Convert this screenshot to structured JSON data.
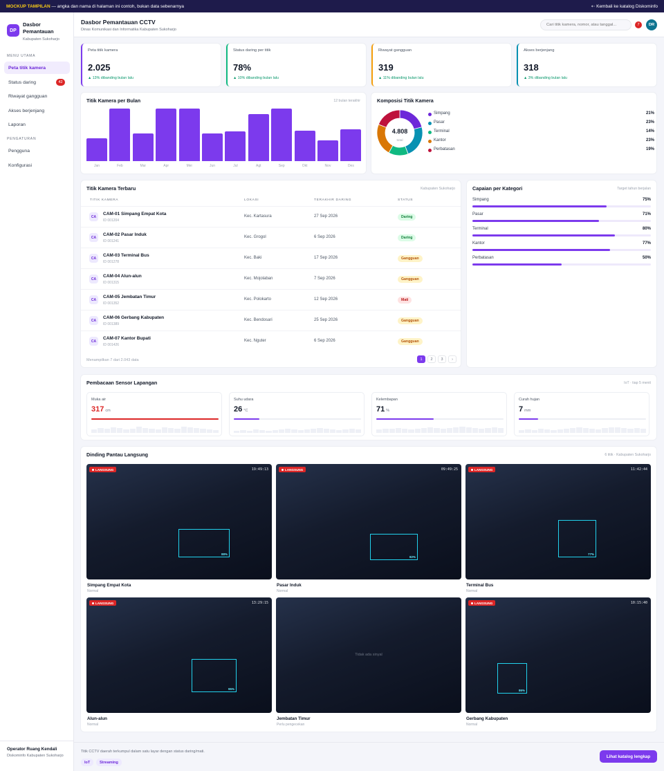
{
  "banner": {
    "tag": "MOCKUP TAMPILAN",
    "text": " — angka dan nama di halaman ini contoh, bukan data sebenarnya",
    "back": "⇠ Kembali ke katalog Diskominfo"
  },
  "brand": {
    "logo": "DP",
    "title": "Dasbor Pemantauan",
    "subtitle": "Kabupaten Sukoharjo"
  },
  "sidebar": {
    "main_label": "MENU UTAMA",
    "items": [
      {
        "label": "Peta titik kamera",
        "active": true
      },
      {
        "label": "Status daring",
        "count": "42"
      },
      {
        "label": "Riwayat gangguan"
      },
      {
        "label": "Akses berjenjang"
      },
      {
        "label": "Laporan"
      }
    ],
    "settings_label": "PENGATURAN",
    "settings": [
      {
        "label": "Pengguna"
      },
      {
        "label": "Konfigurasi"
      }
    ],
    "operator": {
      "name": "Operator Ruang Kendali",
      "org": "Diskominfo Kabupaten Sukoharjo"
    }
  },
  "header": {
    "title": "Dasbor Pemantauan CCTV",
    "subtitle": "Dinas Komunikasi dan Informatika Kabupaten Sukoharjo",
    "search_placeholder": "Cari titik kamera, nomor, atau tanggal...",
    "notifications": "7",
    "avatar": "DR"
  },
  "kpis": [
    {
      "label": "Peta titik kamera",
      "value": "2.025",
      "delta": "▲ 13% dibanding bulan lalu",
      "color": "#7c3aed"
    },
    {
      "label": "Status daring per titik",
      "value": "78%",
      "delta": "▲ 10% dibanding bulan lalu",
      "color": "#10b981"
    },
    {
      "label": "Riwayat gangguan",
      "value": "319",
      "delta": "▲ 11% dibanding bulan lalu",
      "color": "#f59e0b"
    },
    {
      "label": "Akses berjenjang",
      "value": "318",
      "delta": "▲ 3% dibanding bulan lalu",
      "color": "#0891b2"
    }
  ],
  "chart_data": [
    {
      "type": "bar",
      "title": "Titik Kamera per Bulan",
      "note": "12 bulan terakhir",
      "categories": [
        "Jan",
        "Feb",
        "Mar",
        "Apr",
        "Mei",
        "Jun",
        "Jul",
        "Agt",
        "Sep",
        "Okt",
        "Nov",
        "Des"
      ],
      "values": [
        44,
        100,
        53,
        100,
        100,
        52,
        56,
        89,
        100,
        58,
        40,
        60
      ],
      "ylim": [
        0,
        100
      ]
    },
    {
      "type": "pie",
      "title": "Komposisi Titik Kamera",
      "center_value": "4.808",
      "center_label": "total",
      "labels": [
        "Simpang",
        "Pasar",
        "Terminal",
        "Kantor",
        "Perbatasan"
      ],
      "values": [
        21,
        23,
        14,
        23,
        19
      ],
      "colors": [
        "#6d28d9",
        "#0891b2",
        "#10b981",
        "#d97706",
        "#be123c"
      ]
    }
  ],
  "table": {
    "title": "Titik Kamera Terbaru",
    "note": "Kabupaten Sukoharjo",
    "columns": [
      "TITIK KAMERA",
      "LOKASI",
      "TERAKHIR DARING",
      "STATUS"
    ],
    "rows": [
      {
        "icon": "CA",
        "name": "CAM-01 Simpang Empat Kota",
        "id": "ID 001204",
        "location": "Kec. Kartasura",
        "date": "27 Sep 2026",
        "status": "Daring"
      },
      {
        "icon": "CA",
        "name": "CAM-02 Pasar Induk",
        "id": "ID 001241",
        "location": "Kec. Grogol",
        "date": "6 Sep 2026",
        "status": "Daring"
      },
      {
        "icon": "CA",
        "name": "CAM-03 Terminal Bus",
        "id": "ID 001278",
        "location": "Kec. Baki",
        "date": "17 Sep 2026",
        "status": "Gangguan"
      },
      {
        "icon": "CA",
        "name": "CAM-04 Alun-alun",
        "id": "ID 001315",
        "location": "Kec. Mojolaban",
        "date": "7 Sep 2026",
        "status": "Gangguan"
      },
      {
        "icon": "CA",
        "name": "CAM-05 Jembatan Timur",
        "id": "ID 001352",
        "location": "Kec. Polokarto",
        "date": "12 Sep 2026",
        "status": "Mati"
      },
      {
        "icon": "CA",
        "name": "CAM-06 Gerbang Kabupaten",
        "id": "ID 001389",
        "location": "Kec. Bendosari",
        "date": "25 Sep 2026",
        "status": "Gangguan"
      },
      {
        "icon": "CA",
        "name": "CAM-07 Kantor Bupati",
        "id": "ID 001426",
        "location": "Kec. Nguter",
        "date": "6 Sep 2026",
        "status": "Gangguan"
      }
    ],
    "footer": "Menampilkan 7 dari 2.043 data",
    "pages": [
      "1",
      "2",
      "3",
      "›"
    ]
  },
  "status_colors": {
    "Daring": {
      "bg": "#dcfce7",
      "fg": "#15803d"
    },
    "Gangguan": {
      "bg": "#fef3c7",
      "fg": "#b45309"
    },
    "Mati": {
      "bg": "#fee2e2",
      "fg": "#b91c1c"
    }
  },
  "targets": {
    "title": "Capaian per Kategori",
    "note": "Target tahun berjalan",
    "items": [
      {
        "label": "Simpang",
        "value": "75%",
        "pct": 75
      },
      {
        "label": "Pasar",
        "value": "71%",
        "pct": 71
      },
      {
        "label": "Terminal",
        "value": "80%",
        "pct": 80
      },
      {
        "label": "Kantor",
        "value": "77%",
        "pct": 77
      },
      {
        "label": "Perbatasan",
        "value": "50%",
        "pct": 50
      }
    ]
  },
  "sensors": {
    "title": "Pembacaan Sensor Lapangan",
    "note": "IoT · tiap 5 menit",
    "items": [
      {
        "label": "Muka air",
        "value": "317",
        "unit": "cm",
        "level": 1.0,
        "color": "#dc2626",
        "alert": true
      },
      {
        "label": "Suhu udara",
        "value": "26",
        "unit": "°C",
        "level": 0.2,
        "color": "#7c3aed"
      },
      {
        "label": "Kelembapan",
        "value": "71",
        "unit": "%",
        "level": 0.45,
        "color": "#7c3aed"
      },
      {
        "label": "Curah hujan",
        "value": "7",
        "unit": "mm",
        "level": 0.15,
        "color": "#7c3aed"
      }
    ]
  },
  "wall": {
    "title": "Dinding Pantau Langsung",
    "note": "6 titik · Kabupaten Sukoharjo",
    "live_label": "LANGSUNG",
    "no_signal": "Tidak ada sinyal",
    "tiles": [
      {
        "name": "Simpang Empat Kota",
        "status": "Normal",
        "time": "19:49:13",
        "conf": "88%",
        "live": true
      },
      {
        "name": "Pasar Induk",
        "status": "Normal",
        "time": "09:49:25",
        "conf": "82%",
        "live": true
      },
      {
        "name": "Terminal Bus",
        "status": "Normal",
        "time": "11:42:44",
        "conf": "77%",
        "live": true
      },
      {
        "name": "Alun-alun",
        "status": "Normal",
        "time": "13:29:15",
        "conf": "95%",
        "live": true
      },
      {
        "name": "Jembatan Timur",
        "status": "Perlu pengecekan",
        "live": false
      },
      {
        "name": "Gerbang Kabupaten",
        "status": "Normal",
        "time": "10:15:40",
        "conf": "86%",
        "live": true
      }
    ]
  },
  "footer": {
    "note": "Titik CCTV daerah terkumpul dalam satu layar dengan status daring/mati.",
    "chips": [
      "IoT",
      "Streaming"
    ],
    "cta": "Lihat katalog lengkap"
  }
}
